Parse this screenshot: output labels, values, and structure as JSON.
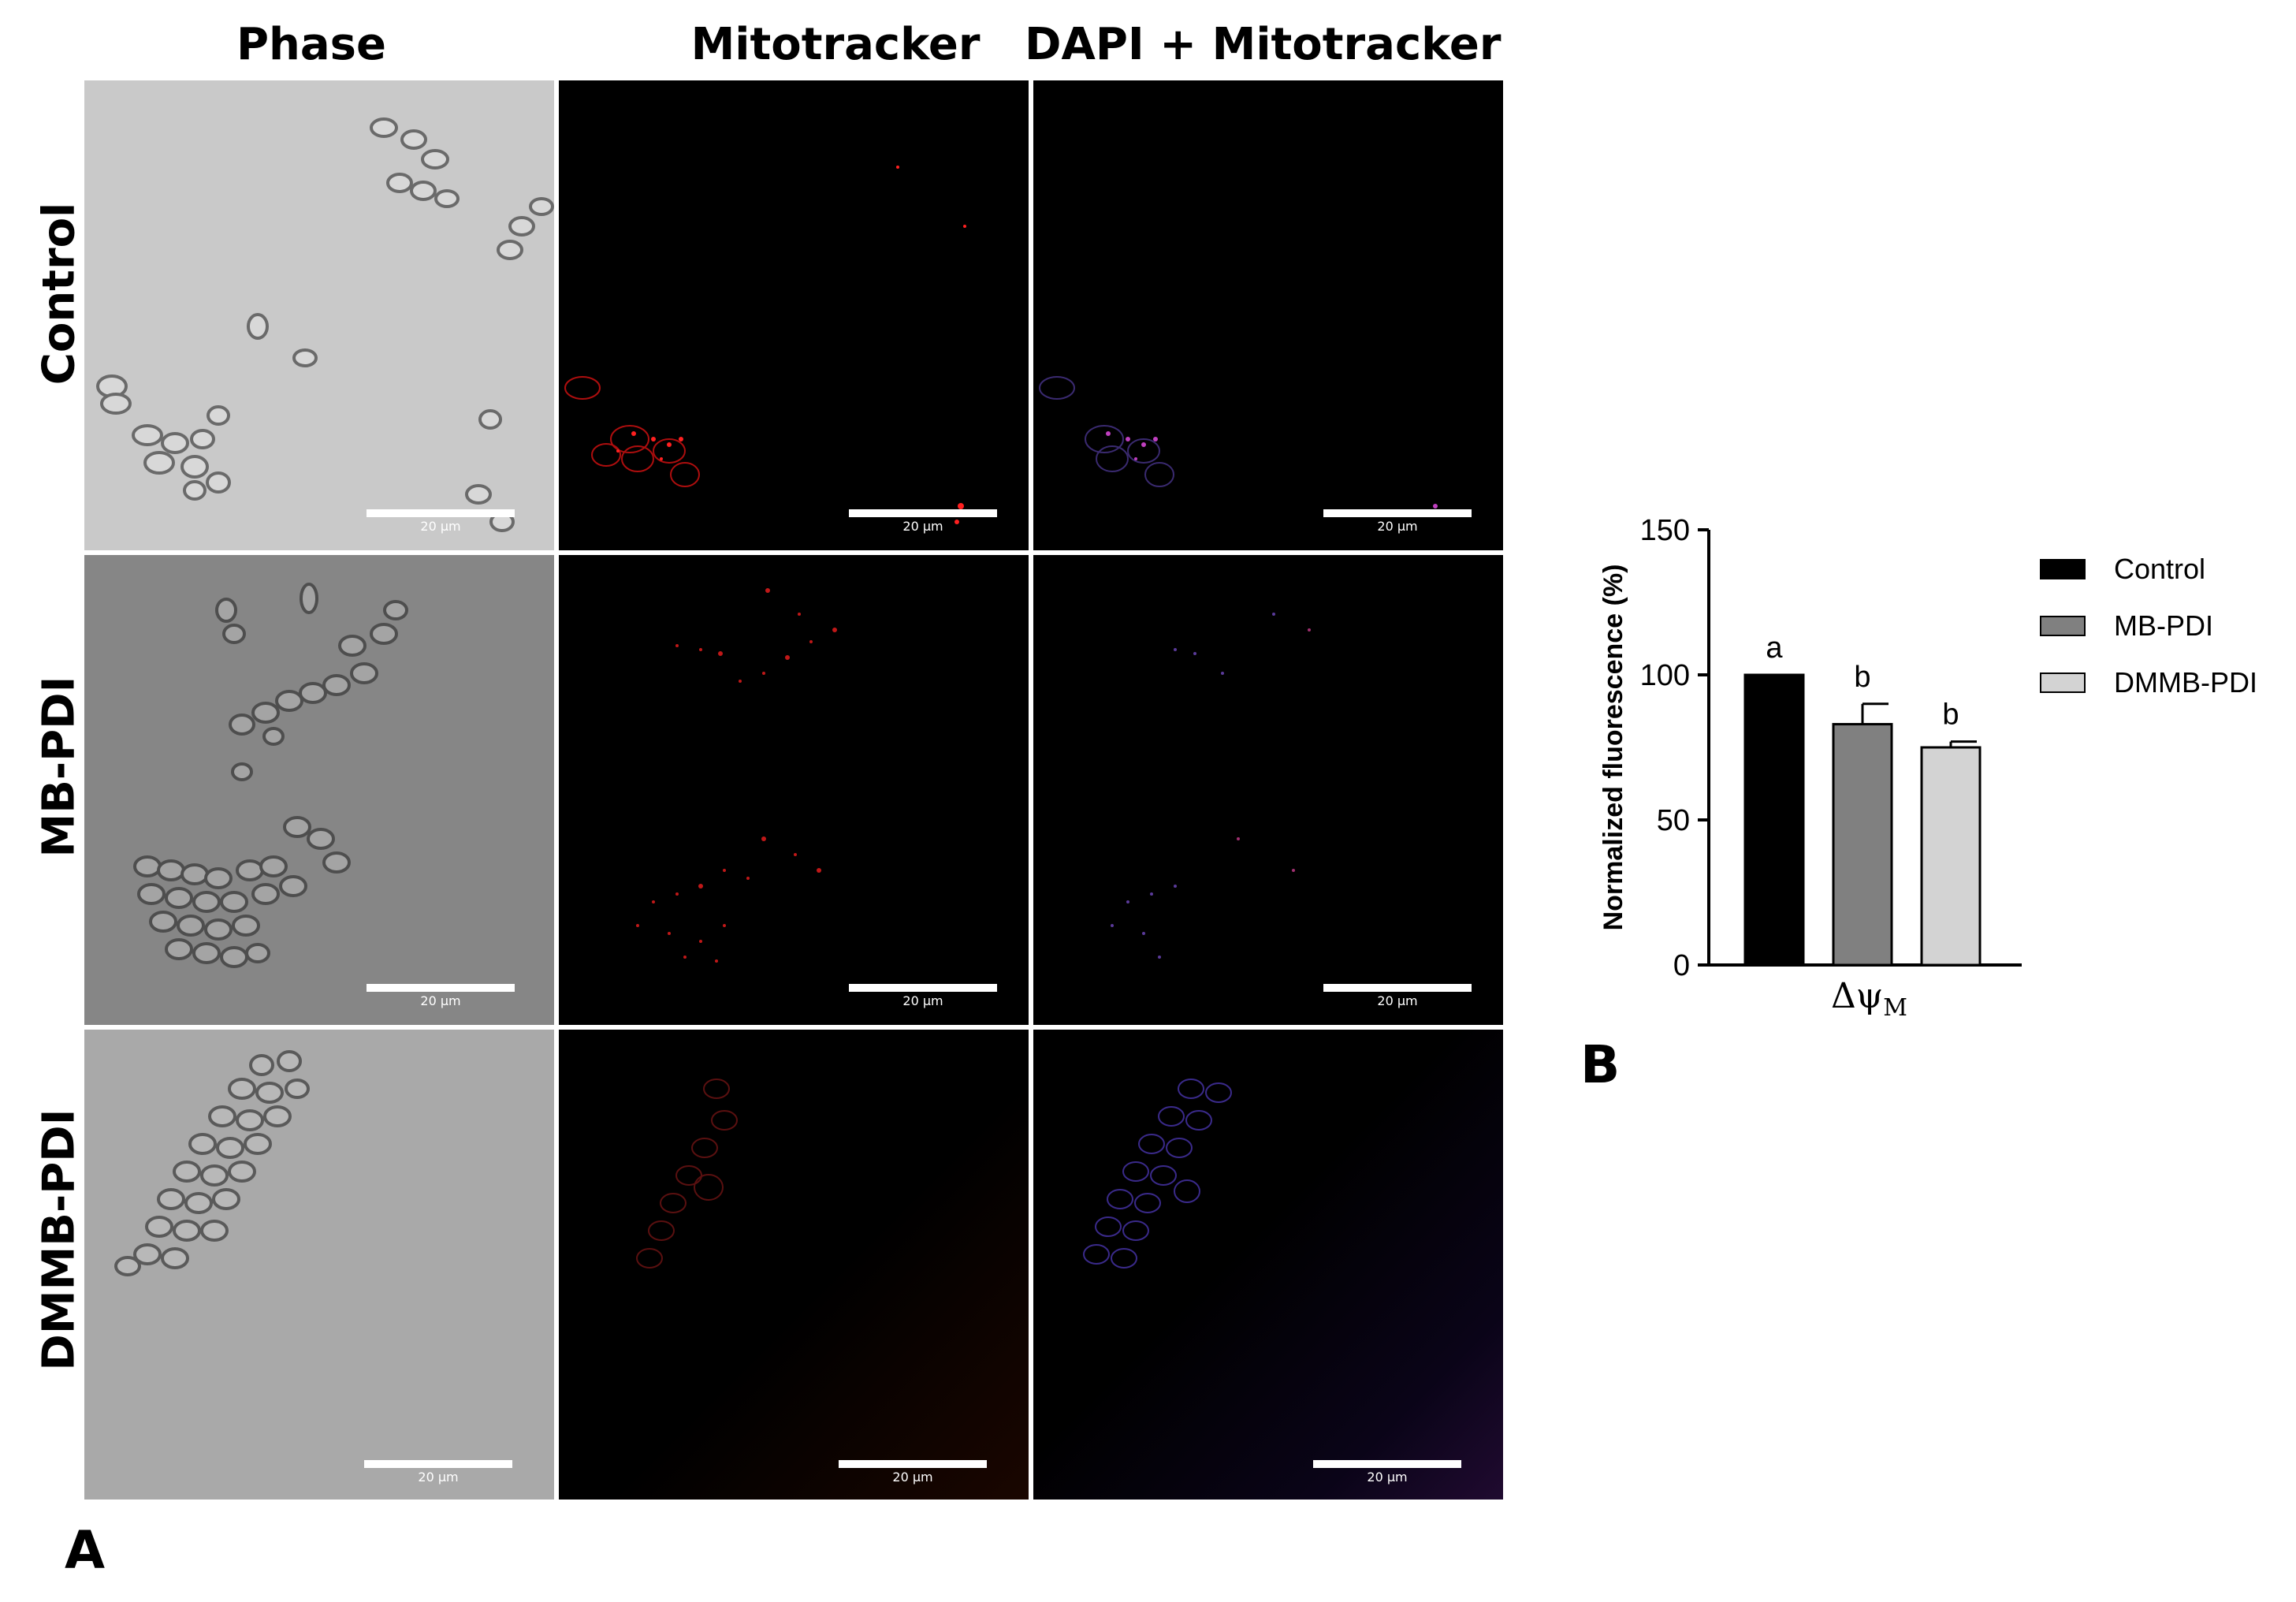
{
  "figure": {
    "column_titles": [
      "Phase",
      "Mitotracker",
      "DAPI + Mitotracker"
    ],
    "row_titles": [
      "Control",
      "MB-PDI",
      "DMMB-PDI"
    ],
    "scale_bar_label": "20 µm",
    "panel_labels": {
      "a": "A",
      "b": "B"
    }
  },
  "chart_data": {
    "type": "bar",
    "categories": [
      "Control",
      "MB-PDI",
      "DMMB-PDI"
    ],
    "values": [
      100,
      83,
      75
    ],
    "errors": [
      0,
      7,
      2
    ],
    "significance_letters": [
      "a",
      "b",
      "b"
    ],
    "colors": [
      "#000000",
      "#808080",
      "#d3d3d3"
    ],
    "xlabel": "Δψ",
    "xlabel_subscript": "M",
    "ylabel": "Normalized fluorescence (%)",
    "ylim": [
      0,
      150
    ],
    "yticks": [
      "0",
      "50",
      "100",
      "150"
    ],
    "legend": [
      "Control",
      "MB-PDI",
      "DMMB-PDI"
    ],
    "legend_position": "right",
    "grid": false
  }
}
